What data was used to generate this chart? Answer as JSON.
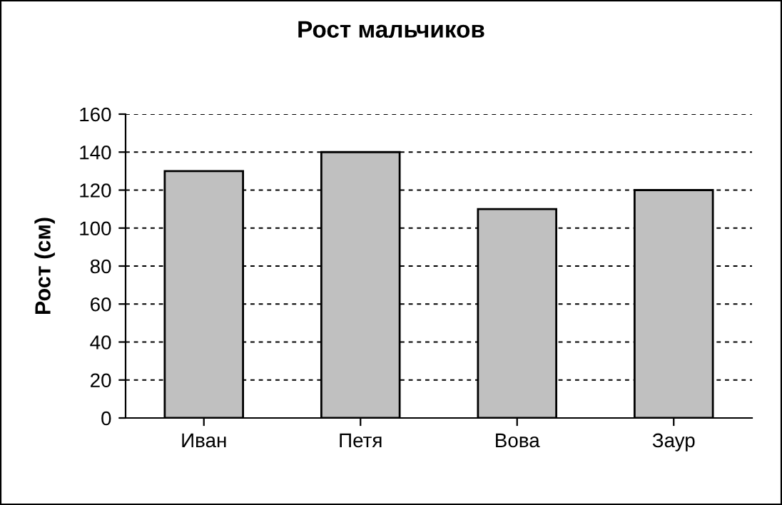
{
  "chart_data": {
    "type": "bar",
    "title": "Рост мальчиков",
    "ylabel": "Рост (см)",
    "categories": [
      "Иван",
      "Петя",
      "Вова",
      "Заур"
    ],
    "values": [
      130,
      140,
      110,
      120
    ],
    "color": "#c0c0c0",
    "ylim": [
      0,
      160
    ],
    "yticks": [
      0,
      20,
      40,
      60,
      80,
      100,
      120,
      140,
      160
    ],
    "grid": "y",
    "legend": false
  }
}
